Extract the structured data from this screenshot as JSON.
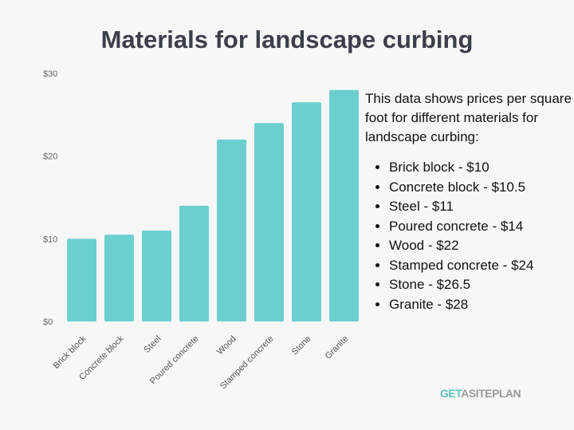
{
  "title": "Materials for landscape curbing",
  "description": {
    "intro": "This data shows prices per square foot for different materials for landscape curbing:",
    "items": [
      "Brick block - $10",
      "Concrete block - $10.5",
      "Steel - $11",
      "Poured concrete - $14",
      "Wood - $22",
      "Stamped concrete - $24",
      "Stone - $26.5",
      "Granite - $28"
    ]
  },
  "logo": {
    "text_a": "GET",
    "text_b": "ASITEPLAN"
  },
  "chart_data": {
    "type": "bar",
    "title": "",
    "categories": [
      "Brick block",
      "Concrete block",
      "Steel",
      "Poured concrete",
      "Wood",
      "Stamped concrete",
      "Stone",
      "Granite"
    ],
    "values": [
      10,
      10.5,
      11,
      14,
      22,
      24,
      26.5,
      28
    ],
    "ylim": [
      0,
      30
    ],
    "yticks": [
      0,
      10,
      20,
      30
    ],
    "ytick_labels": [
      "$0",
      "$10",
      "$20",
      "$30"
    ],
    "grid": false,
    "bar_color": "#6ccfcf"
  }
}
